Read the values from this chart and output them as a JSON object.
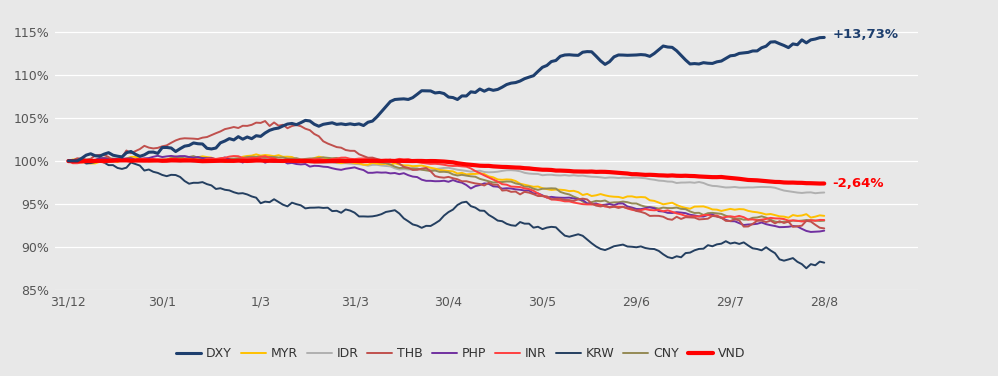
{
  "background_color": "#e8e8e8",
  "ylim": [
    85,
    117
  ],
  "yticks": [
    85,
    90,
    95,
    100,
    105,
    110,
    115
  ],
  "ytick_labels": [
    "85%",
    "90%",
    "95%",
    "100%",
    "105%",
    "110%",
    "115%"
  ],
  "xtick_labels": [
    "31/12",
    "30/1",
    "1/3",
    "31/3",
    "30/4",
    "30/5",
    "29/6",
    "29/7",
    "28/8"
  ],
  "annotation_dxy": "+13,73%",
  "annotation_vnd": "-2,64%",
  "colors": {
    "DXY": "#1f3d6e",
    "MYR": "#ffc000",
    "IDR": "#a6a6a6",
    "THB": "#c0504d",
    "PHP": "#7030a0",
    "INR": "#ff0000",
    "KRW": "#17375e",
    "CNY": "#948a54",
    "VND": "#ff0000"
  },
  "lw": {
    "DXY": 2.2,
    "MYR": 1.4,
    "IDR": 1.4,
    "THB": 1.4,
    "PHP": 1.4,
    "INR": 1.4,
    "KRW": 1.4,
    "CNY": 1.4,
    "VND": 3.0
  },
  "legend_order": [
    "DXY",
    "MYR",
    "IDR",
    "THB",
    "PHP",
    "INR",
    "KRW",
    "CNY",
    "VND"
  ]
}
